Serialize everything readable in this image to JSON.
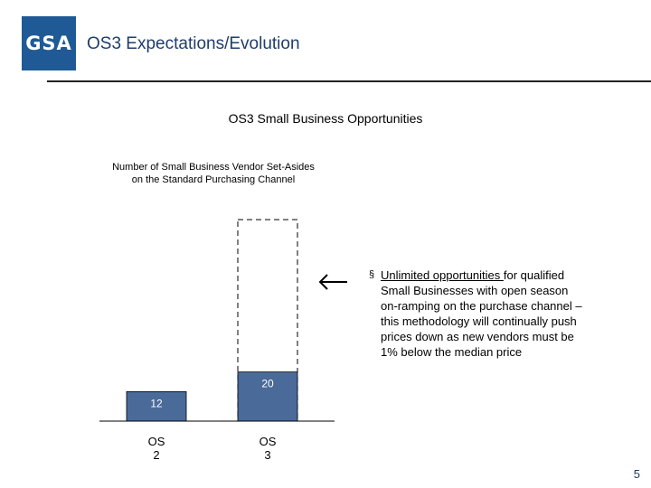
{
  "header": {
    "logo_text": "GSA",
    "title": "OS3 Expectations/Evolution"
  },
  "section_title": "OS3 Small Business Opportunities",
  "chart_data": {
    "type": "bar",
    "title_lines": [
      "Number of Small Business Vendor Set-Asides",
      "on the Standard Purchasing Channel"
    ],
    "categories": [
      [
        "OS",
        "2"
      ],
      [
        "OS",
        "3"
      ]
    ],
    "values": [
      12,
      20
    ],
    "data_labels": [
      "12",
      "20"
    ],
    "projection": {
      "category_index": 1,
      "note": "Unlimited",
      "style": "dashed outline extending above bar"
    },
    "bar_color": "#4a6a9a",
    "label_color": "#ffffff",
    "ylim": [
      0,
      82
    ],
    "grid": false,
    "legend": "none"
  },
  "callout": {
    "arrow": "left-arrow-icon",
    "bullet": "§",
    "underlined_text": "Unlimited opportunities ",
    "text": "for qualified Small Businesses with open season on-ramping on the purchase channel – this methodology will continually push prices down as new vendors must be 1% below the median price"
  },
  "footer": {
    "page_number": "5"
  },
  "colors": {
    "logo_bg": "#1f5a96",
    "title_text": "#1f3d6b",
    "bar": "#4a6a9a"
  }
}
